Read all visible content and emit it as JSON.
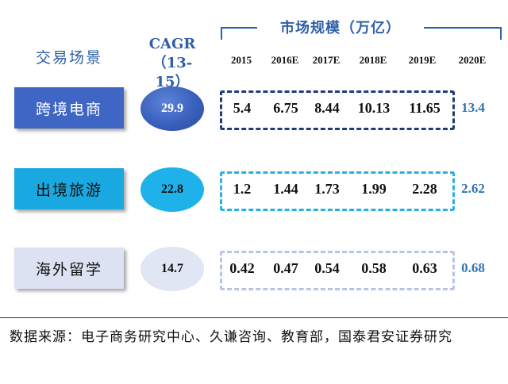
{
  "header": {
    "scenario_label": "交易场景",
    "cagr_label": "CAGR",
    "cagr_range": "（13-15）",
    "market_label": "市场规模（万亿）"
  },
  "chart_data": {
    "type": "table",
    "columns": [
      "2015",
      "2016E",
      "2017E",
      "2018E",
      "2019E",
      "2020E"
    ],
    "rows": [
      {
        "name": "跨境电商",
        "cagr": "29.9",
        "values": [
          "5.4",
          "6.75",
          "8.44",
          "10.13",
          "11.65"
        ],
        "v2020": "13.4"
      },
      {
        "name": "出境旅游",
        "cagr": "22.8",
        "values": [
          "1.2",
          "1.44",
          "1.73",
          "1.99",
          "2.28"
        ],
        "v2020": "2.62"
      },
      {
        "name": "海外留学",
        "cagr": "14.7",
        "values": [
          "0.42",
          "0.47",
          "0.54",
          "0.58",
          "0.63"
        ],
        "v2020": "0.68"
      }
    ]
  },
  "source": "数据来源：电子商务研究中心、久谦咨询、教育部，国泰君安证券研究",
  "colors": {
    "title_blue": "#2e5fa8",
    "row1_box": "#3f66c4",
    "row2_box": "#1aa8e0",
    "row3_box": "#dde2f3",
    "row1_dash": "#1f3c78",
    "row2_dash": "#25b0e6",
    "row3_dash": "#b9c3e6",
    "value_2020": "#2e75b6"
  }
}
